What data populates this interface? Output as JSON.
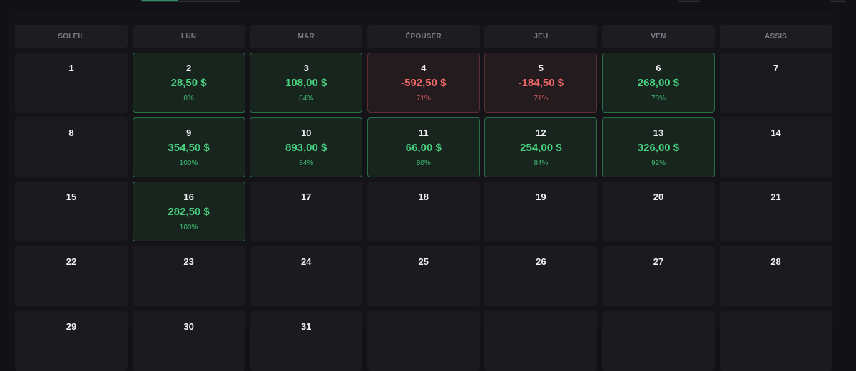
{
  "weekdays": [
    "SOLEIL",
    "LUN",
    "MAR",
    "ÉPOUSER",
    "JEU",
    "VEN",
    "ASSIS"
  ],
  "days": [
    {
      "day": "1",
      "amount": "",
      "pct": "",
      "status": "none"
    },
    {
      "day": "2",
      "amount": "28,50 $",
      "pct": "0%",
      "status": "pos"
    },
    {
      "day": "3",
      "amount": "108,00 $",
      "pct": "84%",
      "status": "pos"
    },
    {
      "day": "4",
      "amount": "-592,50 $",
      "pct": "71%",
      "status": "neg"
    },
    {
      "day": "5",
      "amount": "-184,50 $",
      "pct": "71%",
      "status": "neg"
    },
    {
      "day": "6",
      "amount": "268,00 $",
      "pct": "78%",
      "status": "pos"
    },
    {
      "day": "7",
      "amount": "",
      "pct": "",
      "status": "none"
    },
    {
      "day": "8",
      "amount": "",
      "pct": "",
      "status": "none"
    },
    {
      "day": "9",
      "amount": "354,50 $",
      "pct": "100%",
      "status": "pos"
    },
    {
      "day": "10",
      "amount": "893,00 $",
      "pct": "84%",
      "status": "pos"
    },
    {
      "day": "11",
      "amount": "66,00 $",
      "pct": "80%",
      "status": "pos"
    },
    {
      "day": "12",
      "amount": "254,00 $",
      "pct": "84%",
      "status": "pos"
    },
    {
      "day": "13",
      "amount": "326,00 $",
      "pct": "92%",
      "status": "pos"
    },
    {
      "day": "14",
      "amount": "",
      "pct": "",
      "status": "none"
    },
    {
      "day": "15",
      "amount": "",
      "pct": "",
      "status": "none"
    },
    {
      "day": "16",
      "amount": "282,50 $",
      "pct": "100%",
      "status": "pos"
    },
    {
      "day": "17",
      "amount": "",
      "pct": "",
      "status": "none"
    },
    {
      "day": "18",
      "amount": "",
      "pct": "",
      "status": "none"
    },
    {
      "day": "19",
      "amount": "",
      "pct": "",
      "status": "none"
    },
    {
      "day": "20",
      "amount": "",
      "pct": "",
      "status": "none"
    },
    {
      "day": "21",
      "amount": "",
      "pct": "",
      "status": "none"
    },
    {
      "day": "22",
      "amount": "",
      "pct": "",
      "status": "none"
    },
    {
      "day": "23",
      "amount": "",
      "pct": "",
      "status": "none"
    },
    {
      "day": "24",
      "amount": "",
      "pct": "",
      "status": "none"
    },
    {
      "day": "25",
      "amount": "",
      "pct": "",
      "status": "none"
    },
    {
      "day": "26",
      "amount": "",
      "pct": "",
      "status": "none"
    },
    {
      "day": "27",
      "amount": "",
      "pct": "",
      "status": "none"
    },
    {
      "day": "28",
      "amount": "",
      "pct": "",
      "status": "none"
    },
    {
      "day": "29",
      "amount": "",
      "pct": "",
      "status": "none"
    },
    {
      "day": "30",
      "amount": "",
      "pct": "",
      "status": "none"
    },
    {
      "day": "31",
      "amount": "",
      "pct": "",
      "status": "none"
    },
    {
      "day": "",
      "amount": "",
      "pct": "",
      "status": "blank"
    },
    {
      "day": "",
      "amount": "",
      "pct": "",
      "status": "blank"
    },
    {
      "day": "",
      "amount": "",
      "pct": "",
      "status": "blank"
    },
    {
      "day": "",
      "amount": "",
      "pct": "",
      "status": "blank"
    }
  ],
  "colors": {
    "positive": "#48d07f",
    "negative": "#ef6868",
    "positive_bg": "#18241e",
    "negative_bg": "#241b1e",
    "page_bg": "#121216"
  }
}
